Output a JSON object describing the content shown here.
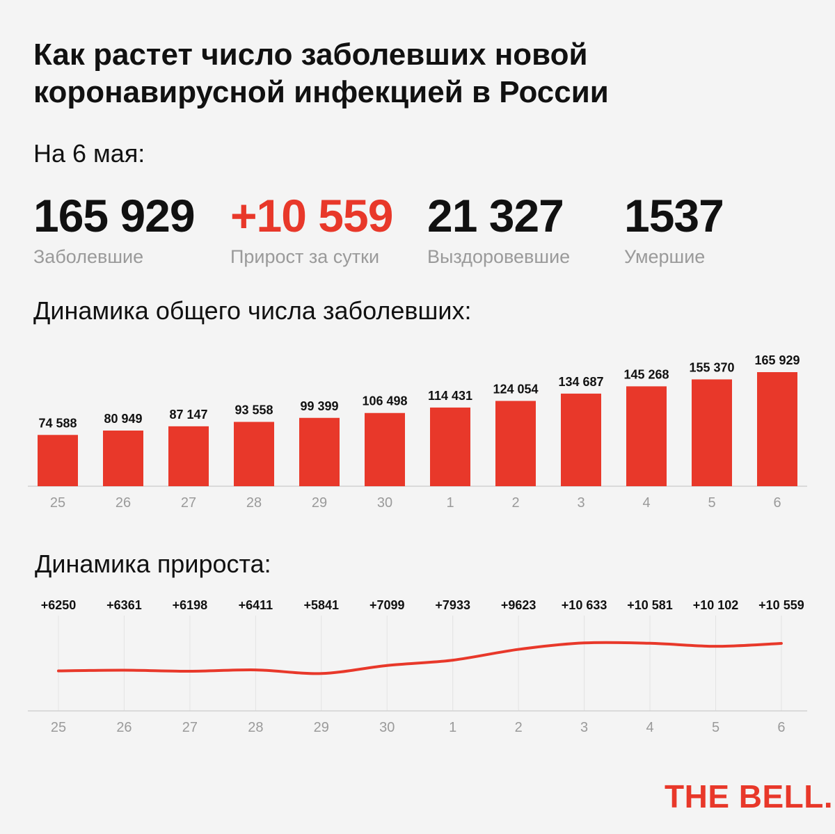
{
  "title": "Как растет число заболевших новой коронавирусной инфекцией в России",
  "date_label": "На 6 мая:",
  "stats": [
    {
      "value": "165 929",
      "label": "Заболевшие"
    },
    {
      "value": "+10 559",
      "label": "Прирост за сутки"
    },
    {
      "value": "21 327",
      "label": "Выздоровевшие"
    },
    {
      "value": "1537",
      "label": "Умершие"
    }
  ],
  "colors": {
    "accent": "#e8382a",
    "muted": "#9a9a9a",
    "grid": "#e3e3e3",
    "background": "#f4f4f4"
  },
  "chart_data": [
    {
      "type": "bar",
      "title": "Динамика общего числа заболевших:",
      "categories": [
        "25",
        "26",
        "27",
        "28",
        "29",
        "30",
        "1",
        "2",
        "3",
        "4",
        "5",
        "6"
      ],
      "values": [
        74588,
        80949,
        87147,
        93558,
        99399,
        106498,
        114431,
        124054,
        134687,
        145268,
        155370,
        165929
      ],
      "value_labels": [
        "74 588",
        "80 949",
        "87 147",
        "93 558",
        "99 399",
        "106 498",
        "114 431",
        "124 054",
        "134 687",
        "145 268",
        "155 370",
        "165 929"
      ]
    },
    {
      "type": "line",
      "title": "Динамика прироста:",
      "categories": [
        "25",
        "26",
        "27",
        "28",
        "29",
        "30",
        "1",
        "2",
        "3",
        "4",
        "5",
        "6"
      ],
      "values": [
        6250,
        6361,
        6198,
        6411,
        5841,
        7099,
        7933,
        9623,
        10633,
        10581,
        10102,
        10559
      ],
      "value_labels": [
        "+6250",
        "+6361",
        "+6198",
        "+6411",
        "+5841",
        "+7099",
        "+7933",
        "+9623",
        "+10 633",
        "+10 581",
        "+10 102",
        "+10 559"
      ],
      "grid": true
    }
  ],
  "logo": "THE BELL."
}
